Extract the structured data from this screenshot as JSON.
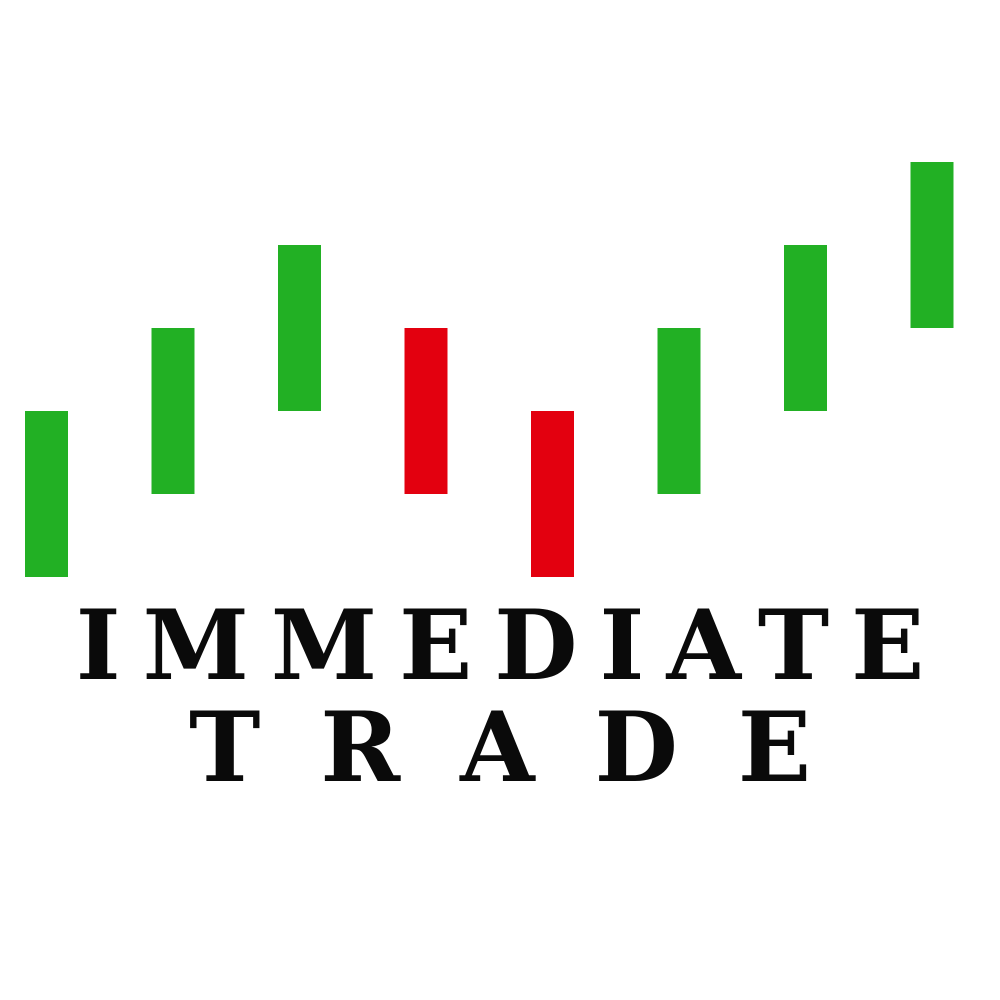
{
  "logo": {
    "line1": "IMMEDIATE",
    "line2": "TRADE",
    "colors": {
      "up": "#22b024",
      "down": "#e3000f",
      "text": "#0a0a0a",
      "background": "#ffffff"
    },
    "candles": [
      {
        "direction": "up",
        "low": 0,
        "high": 2
      },
      {
        "direction": "up",
        "low": 1,
        "high": 3
      },
      {
        "direction": "up",
        "low": 2,
        "high": 4
      },
      {
        "direction": "down",
        "low": 1,
        "high": 3
      },
      {
        "direction": "down",
        "low": 0,
        "high": 2
      },
      {
        "direction": "up",
        "low": 1,
        "high": 3
      },
      {
        "direction": "up",
        "low": 2,
        "high": 4
      },
      {
        "direction": "up",
        "low": 3,
        "high": 5
      }
    ]
  }
}
